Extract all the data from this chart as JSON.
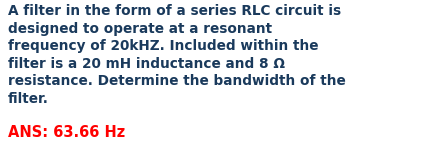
{
  "main_text": "A filter in the form of a series RLC circuit is\ndesigned to operate at a resonant\nfrequency of 20kHZ. Included within the\nfilter is a 20 mH inductance and 8 Ω\nresistance. Determine the bandwidth of the\nfilter.",
  "ans_text": "ANS: 63.66 Hz",
  "main_color": "#1a3a5c",
  "ans_color": "#ff0000",
  "bg_color": "#ffffff",
  "main_fontsize": 9.8,
  "ans_fontsize": 10.5,
  "fig_width": 4.41,
  "fig_height": 1.46,
  "dpi": 100
}
